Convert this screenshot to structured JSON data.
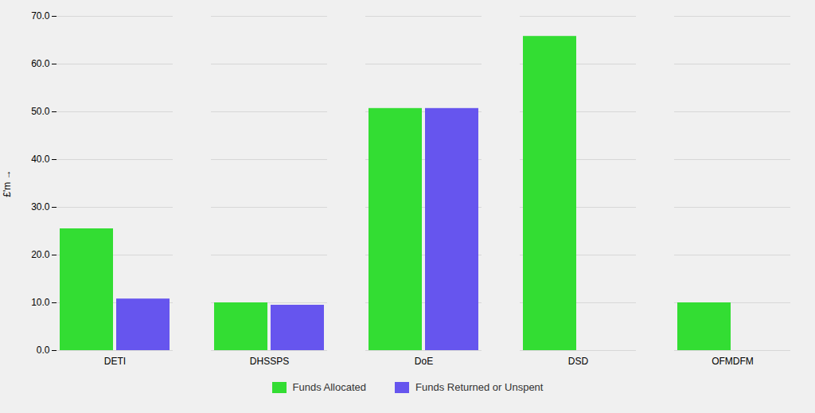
{
  "chart_data": {
    "type": "bar",
    "categories": [
      "DETI",
      "DHSSPS",
      "DoE",
      "DSD",
      "OFMDFM"
    ],
    "series": [
      {
        "name": "Funds Allocated",
        "color": "#33dd33",
        "values": [
          25.5,
          10.0,
          50.7,
          65.8,
          10.0
        ]
      },
      {
        "name": "Funds Returned or Unspent",
        "color": "#6655ee",
        "values": [
          10.8,
          9.5,
          50.7,
          0.0,
          0.0
        ]
      }
    ],
    "ylabel": "£'m",
    "ylim": [
      0,
      70
    ],
    "yticks": [
      {
        "value": 0,
        "label": "0.0"
      },
      {
        "value": 10,
        "label": "10.0"
      },
      {
        "value": 20,
        "label": "20.0"
      },
      {
        "value": 30,
        "label": "30.0"
      },
      {
        "value": 40,
        "label": "40.0"
      },
      {
        "value": 50,
        "label": "50.0"
      },
      {
        "value": 60,
        "label": "60.0"
      },
      {
        "value": 70,
        "label": "70.0"
      }
    ],
    "grid": true,
    "legend": "bottom"
  }
}
